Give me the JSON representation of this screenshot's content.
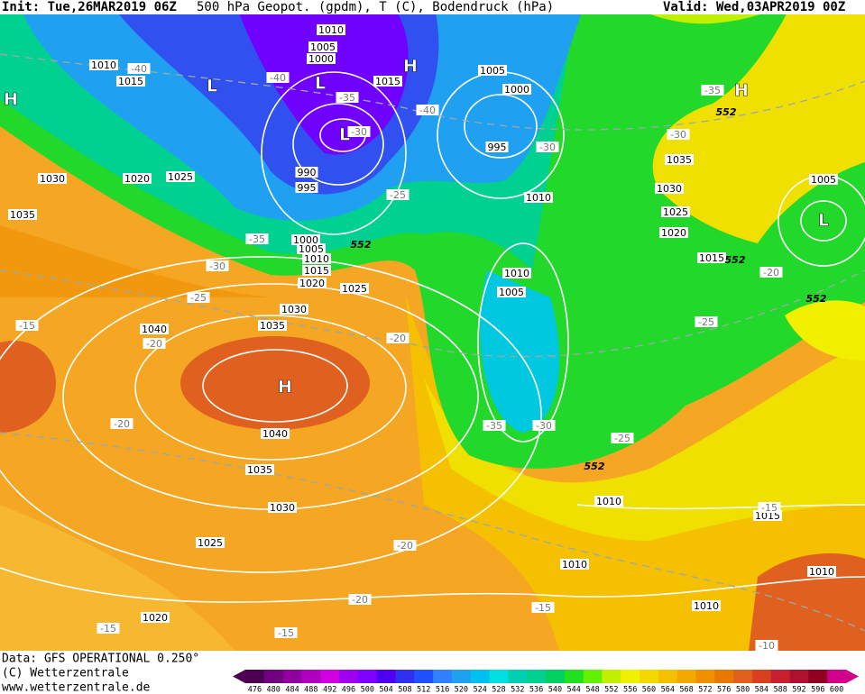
{
  "header": {
    "init": "Init: Tue,26MAR2019 06Z",
    "title": "500 hPa Geopot. (gpdm), T (C), Bodendruck (hPa)",
    "valid": "Valid: Wed,03APR2019 00Z"
  },
  "pressure_labels": [
    "1010",
    "1005",
    "1000",
    "1010",
    "1015",
    "1015",
    "1005",
    "1000",
    "995",
    "1010",
    "990",
    "995",
    "1030",
    "1020",
    "1025",
    "1035",
    "1000",
    "1005",
    "1010",
    "1015",
    "1020",
    "1025",
    "1030",
    "1035",
    "1040",
    "1040",
    "1035",
    "1030",
    "1025",
    "1020",
    "1010",
    "1005",
    "1035",
    "1030",
    "1025",
    "1020",
    "1015",
    "1005",
    "1010",
    "1015",
    "1010",
    "1010",
    "1010"
  ],
  "temperature_labels": [
    "-40",
    "-40",
    "-40",
    "-35",
    "-30",
    "-35",
    "-30",
    "-30",
    "-25",
    "-35",
    "-30",
    "-25",
    "-15",
    "-20",
    "-20",
    "-25",
    "-20",
    "-35",
    "-30",
    "-25",
    "-20",
    "-20",
    "-20",
    "-15",
    "-15",
    "-15",
    "-15",
    "-10"
  ],
  "contour_labels": [
    "552",
    "552",
    "552",
    "552",
    "552"
  ],
  "centers": [
    "H",
    "L",
    "L",
    "H",
    "L",
    "H",
    "L",
    "H"
  ],
  "footer": {
    "data": "Data: GFS OPERATIONAL 0.250°",
    "copyright": "(C) Wetterzentrale",
    "url": "www.wetterzentrale.de"
  },
  "colorbar": {
    "values": [
      476,
      480,
      484,
      488,
      492,
      496,
      500,
      504,
      508,
      512,
      516,
      520,
      524,
      528,
      532,
      536,
      540,
      544,
      548,
      552,
      556,
      560,
      564,
      568,
      572,
      576,
      580,
      584,
      588,
      592,
      596,
      600
    ],
    "colors": [
      "#4b0050",
      "#700080",
      "#9000a0",
      "#b000c0",
      "#d000e0",
      "#a000f0",
      "#8000ff",
      "#5000f0",
      "#3030f0",
      "#2050ff",
      "#3080ff",
      "#20a0f0",
      "#00c0f0",
      "#00e0e0",
      "#00d0b0",
      "#00d090",
      "#00d060",
      "#20e020",
      "#60f000",
      "#c0f000",
      "#f0f000",
      "#f5d800",
      "#f5c000",
      "#f5a800",
      "#f09000",
      "#e87800",
      "#e06020",
      "#d84020",
      "#c82030",
      "#b01030",
      "#900020",
      "#d0008a"
    ]
  }
}
